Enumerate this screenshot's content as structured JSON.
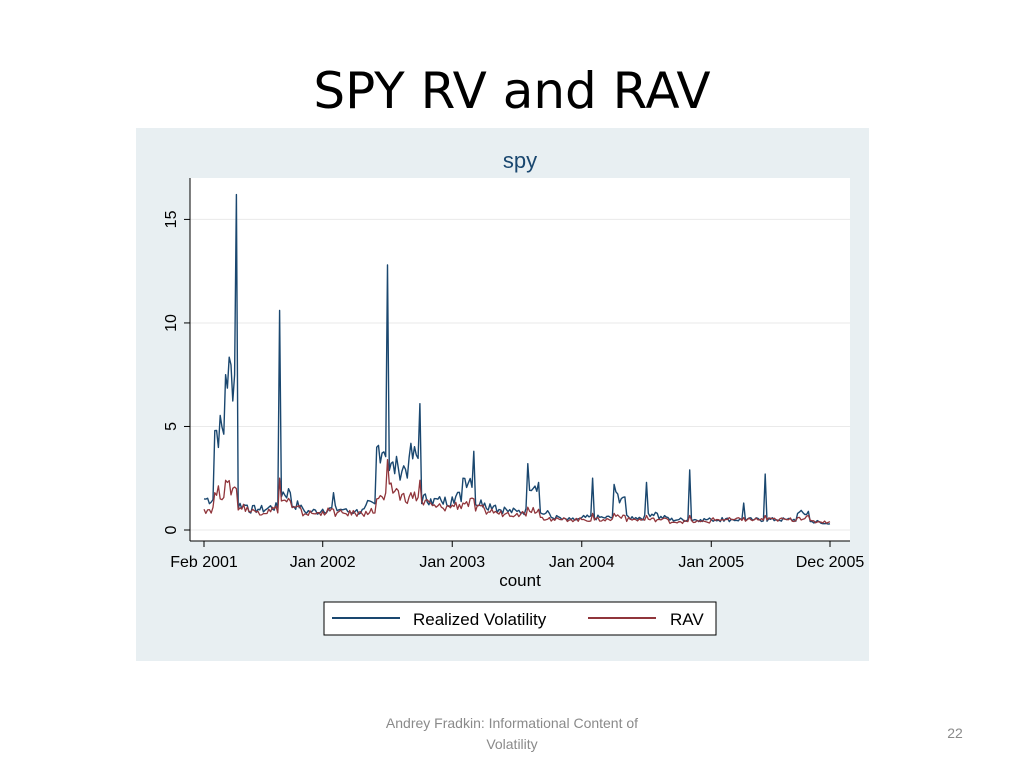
{
  "slide": {
    "title": "SPY RV and RAV",
    "footer": "Andrey Fradkin: Informational Content of Volatility",
    "page_number": "22"
  },
  "colors": {
    "panel_bg": "#e8eff2",
    "plot_bg": "#ffffff",
    "rv_line": "#1a476f",
    "rav_line": "#90353b",
    "title_color": "#1a476f"
  },
  "chart_data": {
    "type": "line",
    "title": "spy",
    "xlabel": "count",
    "ylabel": "",
    "ylim": [
      0,
      17
    ],
    "yticks": [
      0,
      5,
      10,
      15
    ],
    "x_tick_labels": [
      "Feb 2001",
      "Jan 2002",
      "Jan 2003",
      "Jan 2004",
      "Jan 2005",
      "Dec 2005"
    ],
    "x_range": [
      "2001-02",
      "2005-12"
    ],
    "grid": true,
    "legend_position": "bottom",
    "series": [
      {
        "name": "Realized Volatility",
        "color": "#1a476f",
        "x": [
          "2001-02",
          "2001-03",
          "2001-04",
          "2001-05",
          "2001-06",
          "2001-07",
          "2001-08",
          "2001-09",
          "2001-10",
          "2001-11",
          "2001-12",
          "2002-01",
          "2002-02",
          "2002-03",
          "2002-04",
          "2002-05",
          "2002-06",
          "2002-07",
          "2002-08",
          "2002-09",
          "2002-10",
          "2002-11",
          "2002-12",
          "2003-01",
          "2003-02",
          "2003-03",
          "2003-04",
          "2003-05",
          "2003-06",
          "2003-07",
          "2003-08",
          "2003-09",
          "2003-10",
          "2003-11",
          "2003-12",
          "2004-01",
          "2004-02",
          "2004-03",
          "2004-04",
          "2004-05",
          "2004-06",
          "2004-07",
          "2004-08",
          "2004-09",
          "2004-10",
          "2004-11",
          "2004-12",
          "2005-01",
          "2005-02",
          "2005-03",
          "2005-04",
          "2005-05",
          "2005-06",
          "2005-07",
          "2005-08",
          "2005-09",
          "2005-10",
          "2005-11",
          "2005-12"
        ],
        "values": [
          1.5,
          4.8,
          7.5,
          16.2,
          1.2,
          1.0,
          1.1,
          10.6,
          1.8,
          1.2,
          0.9,
          1.0,
          1.8,
          1.0,
          0.9,
          1.2,
          4.0,
          12.8,
          3.0,
          3.5,
          6.1,
          1.5,
          1.4,
          1.6,
          2.5,
          3.8,
          1.3,
          1.2,
          1.0,
          0.9,
          3.2,
          2.3,
          0.8,
          0.6,
          0.5,
          0.6,
          2.5,
          0.6,
          2.2,
          1.6,
          0.6,
          2.3,
          0.8,
          0.6,
          0.5,
          2.9,
          0.5,
          0.5,
          0.6,
          0.5,
          1.3,
          0.5,
          2.7,
          0.5,
          0.5,
          0.8,
          0.9,
          0.4,
          0.3
        ]
      },
      {
        "name": "RAV",
        "color": "#90353b",
        "x": [
          "2001-02",
          "2001-03",
          "2001-04",
          "2001-05",
          "2001-06",
          "2001-07",
          "2001-08",
          "2001-09",
          "2001-10",
          "2001-11",
          "2001-12",
          "2002-01",
          "2002-02",
          "2002-03",
          "2002-04",
          "2002-05",
          "2002-06",
          "2002-07",
          "2002-08",
          "2002-09",
          "2002-10",
          "2002-11",
          "2002-12",
          "2003-01",
          "2003-02",
          "2003-03",
          "2003-04",
          "2003-05",
          "2003-06",
          "2003-07",
          "2003-08",
          "2003-09",
          "2003-10",
          "2003-11",
          "2003-12",
          "2004-01",
          "2004-02",
          "2004-03",
          "2004-04",
          "2004-05",
          "2004-06",
          "2004-07",
          "2004-08",
          "2004-09",
          "2004-10",
          "2004-11",
          "2004-12",
          "2005-01",
          "2005-02",
          "2005-03",
          "2005-04",
          "2005-05",
          "2005-06",
          "2005-07",
          "2005-08",
          "2005-09",
          "2005-10",
          "2005-11",
          "2005-12"
        ],
        "values": [
          1.0,
          1.8,
          2.4,
          2.0,
          1.1,
          0.9,
          1.0,
          2.5,
          1.4,
          1.0,
          0.8,
          0.9,
          1.0,
          0.8,
          0.8,
          0.9,
          1.5,
          3.4,
          1.9,
          1.6,
          2.4,
          1.3,
          1.1,
          1.2,
          1.3,
          1.5,
          1.0,
          0.9,
          0.8,
          0.8,
          1.1,
          1.0,
          0.6,
          0.5,
          0.5,
          0.5,
          0.8,
          0.5,
          0.8,
          0.7,
          0.5,
          0.7,
          0.5,
          0.5,
          0.4,
          0.7,
          0.4,
          0.5,
          0.5,
          0.5,
          0.6,
          0.5,
          0.7,
          0.5,
          0.5,
          0.6,
          0.7,
          0.4,
          0.4
        ]
      }
    ]
  }
}
